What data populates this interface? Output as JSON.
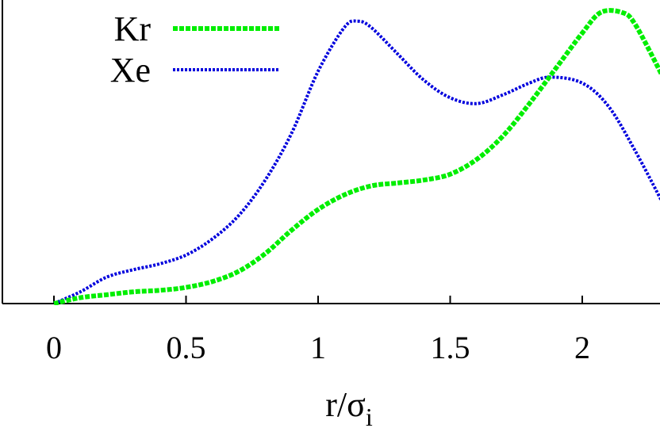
{
  "chart_data": {
    "type": "line",
    "title": "",
    "xlabel": "r/σ",
    "xlabel_subscript": "i",
    "ylabel": "",
    "xlim": [
      0,
      2.3
    ],
    "ylim": [
      0,
      1.0
    ],
    "xticks": [
      0,
      0.5,
      1,
      1.5,
      2
    ],
    "xtick_labels": [
      "0",
      "0.5",
      "1",
      "1.5",
      "2"
    ],
    "grid": false,
    "legend_position": "top-left",
    "series": [
      {
        "name": "Kr",
        "color": "#00ee00",
        "style": "dashed",
        "x": [
          0,
          0.1,
          0.2,
          0.3,
          0.4,
          0.5,
          0.6,
          0.7,
          0.8,
          0.9,
          1.0,
          1.1,
          1.2,
          1.3,
          1.4,
          1.5,
          1.6,
          1.7,
          1.8,
          1.9,
          2.0,
          2.07,
          2.15,
          2.2,
          2.3
        ],
        "y": [
          0.0,
          0.02,
          0.03,
          0.04,
          0.045,
          0.055,
          0.075,
          0.11,
          0.17,
          0.25,
          0.32,
          0.37,
          0.4,
          0.41,
          0.42,
          0.44,
          0.49,
          0.57,
          0.68,
          0.8,
          0.92,
          0.99,
          0.99,
          0.95,
          0.78
        ]
      },
      {
        "name": "Xe",
        "color": "#0000dd",
        "style": "dotted",
        "x": [
          0,
          0.1,
          0.2,
          0.3,
          0.4,
          0.5,
          0.6,
          0.7,
          0.8,
          0.9,
          1.0,
          1.1,
          1.15,
          1.2,
          1.3,
          1.4,
          1.5,
          1.6,
          1.7,
          1.8,
          1.88,
          2.0,
          2.1,
          2.2,
          2.3
        ],
        "y": [
          0.0,
          0.04,
          0.09,
          0.115,
          0.135,
          0.165,
          0.22,
          0.3,
          0.42,
          0.58,
          0.79,
          0.94,
          0.96,
          0.94,
          0.85,
          0.76,
          0.7,
          0.68,
          0.71,
          0.75,
          0.77,
          0.75,
          0.67,
          0.52,
          0.35
        ]
      }
    ]
  }
}
